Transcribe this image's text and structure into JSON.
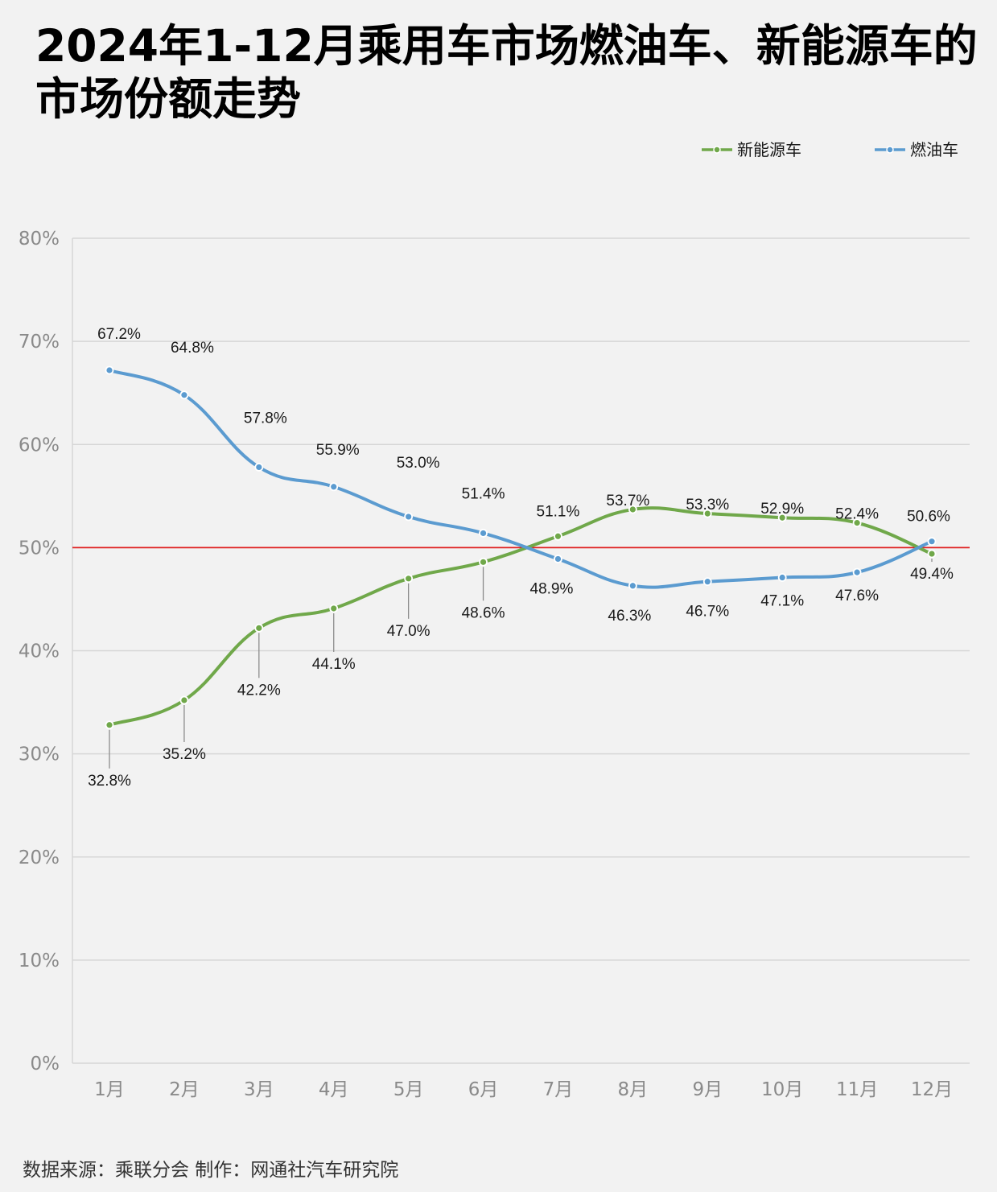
{
  "title": "2024年1-12月乘用车市场燃油车、新能源车的市场份额走势",
  "source": "数据来源：乘联分会  制作：网通社汽车研究院",
  "chart_data": {
    "type": "line",
    "title": "2024年1-12月乘用车市场燃油车、新能源车的市场份额走势",
    "xlabel": "",
    "ylabel": "",
    "categories": [
      "1月",
      "2月",
      "3月",
      "4月",
      "5月",
      "6月",
      "7月",
      "8月",
      "9月",
      "10月",
      "11月",
      "12月"
    ],
    "ylim": [
      0,
      80
    ],
    "yticks": [
      0,
      10,
      20,
      30,
      40,
      50,
      60,
      70,
      80
    ],
    "ytick_labels": [
      "0%",
      "10%",
      "20%",
      "30%",
      "40%",
      "50%",
      "60%",
      "70%",
      "80%"
    ],
    "reference_line": {
      "value": 50,
      "color": "#e02020"
    },
    "grid": true,
    "legend_position": "top-right",
    "series": [
      {
        "name": "新能源车",
        "color": "#70a84a",
        "values": [
          32.8,
          35.2,
          42.2,
          44.1,
          47.0,
          48.6,
          51.1,
          53.7,
          53.3,
          52.9,
          52.4,
          49.4
        ],
        "labels": [
          "32.8%",
          "35.2%",
          "42.2%",
          "44.1%",
          "47.0%",
          "48.6%",
          "51.1%",
          "53.7%",
          "53.3%",
          "52.9%",
          "52.4%",
          "49.4%"
        ]
      },
      {
        "name": "燃油车",
        "color": "#5b9bd0",
        "values": [
          67.2,
          64.8,
          57.8,
          55.9,
          53.0,
          51.4,
          48.9,
          46.3,
          46.7,
          47.1,
          47.6,
          50.6
        ],
        "labels": [
          "67.2%",
          "64.8%",
          "57.8%",
          "55.9%",
          "53.0%",
          "51.4%",
          "48.9%",
          "46.3%",
          "46.7%",
          "47.1%",
          "47.6%",
          "50.6%"
        ]
      }
    ]
  }
}
